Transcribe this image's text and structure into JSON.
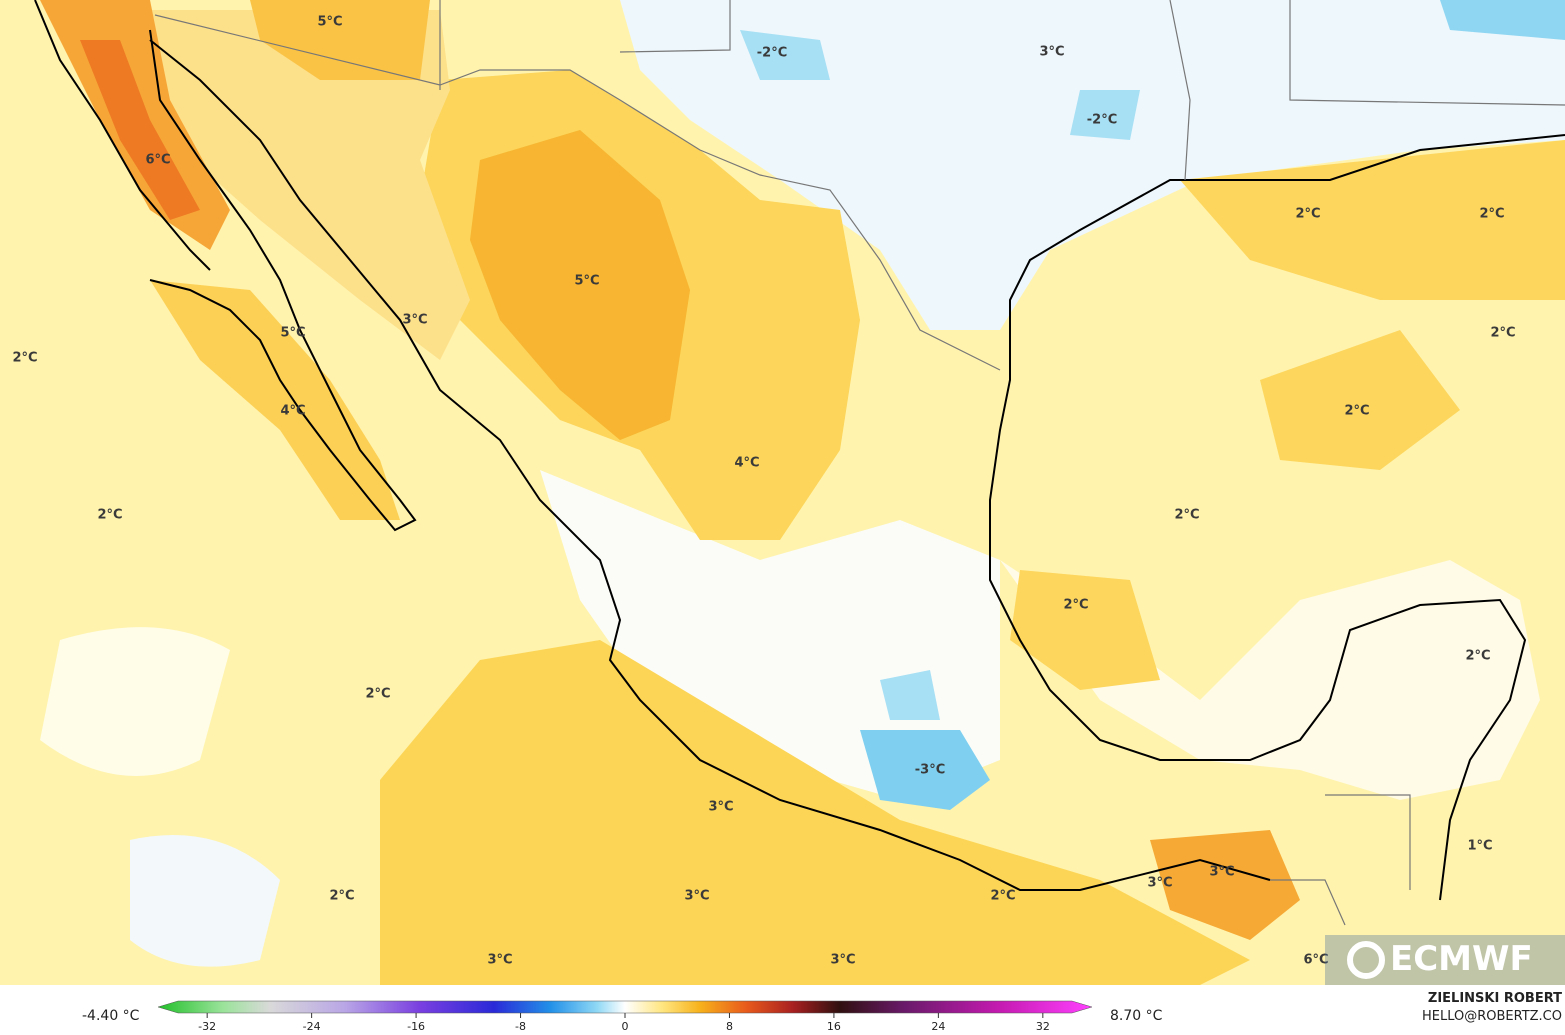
{
  "map": {
    "labels": [
      "5°C",
      "-2°C",
      "3°C",
      "-2°C",
      "6°C",
      "2°C",
      "2°C",
      "5°C",
      "3°C",
      "5°C",
      "2°C",
      "2°C",
      "4°C",
      "2°C",
      "4°C",
      "2°C",
      "2°C",
      "2°C",
      "2°C",
      "2°C",
      "-3°C",
      "3°C",
      "1°C",
      "3°C",
      "3°C",
      "2°C",
      "3°C",
      "2°C",
      "3°C",
      "3°C",
      "6°C"
    ],
    "logo": "ECMWF"
  },
  "colorbar": {
    "min_label": "-4.40 °C",
    "max_label": "8.70 °C",
    "lim": [
      -35,
      35
    ],
    "ticks": [
      -32,
      -24,
      -16,
      -8,
      0,
      8,
      16,
      24,
      32
    ]
  },
  "credits": {
    "author": "ZIELINSKI ROBERT",
    "contact": "HELLO@ROBERTZ.CO"
  }
}
